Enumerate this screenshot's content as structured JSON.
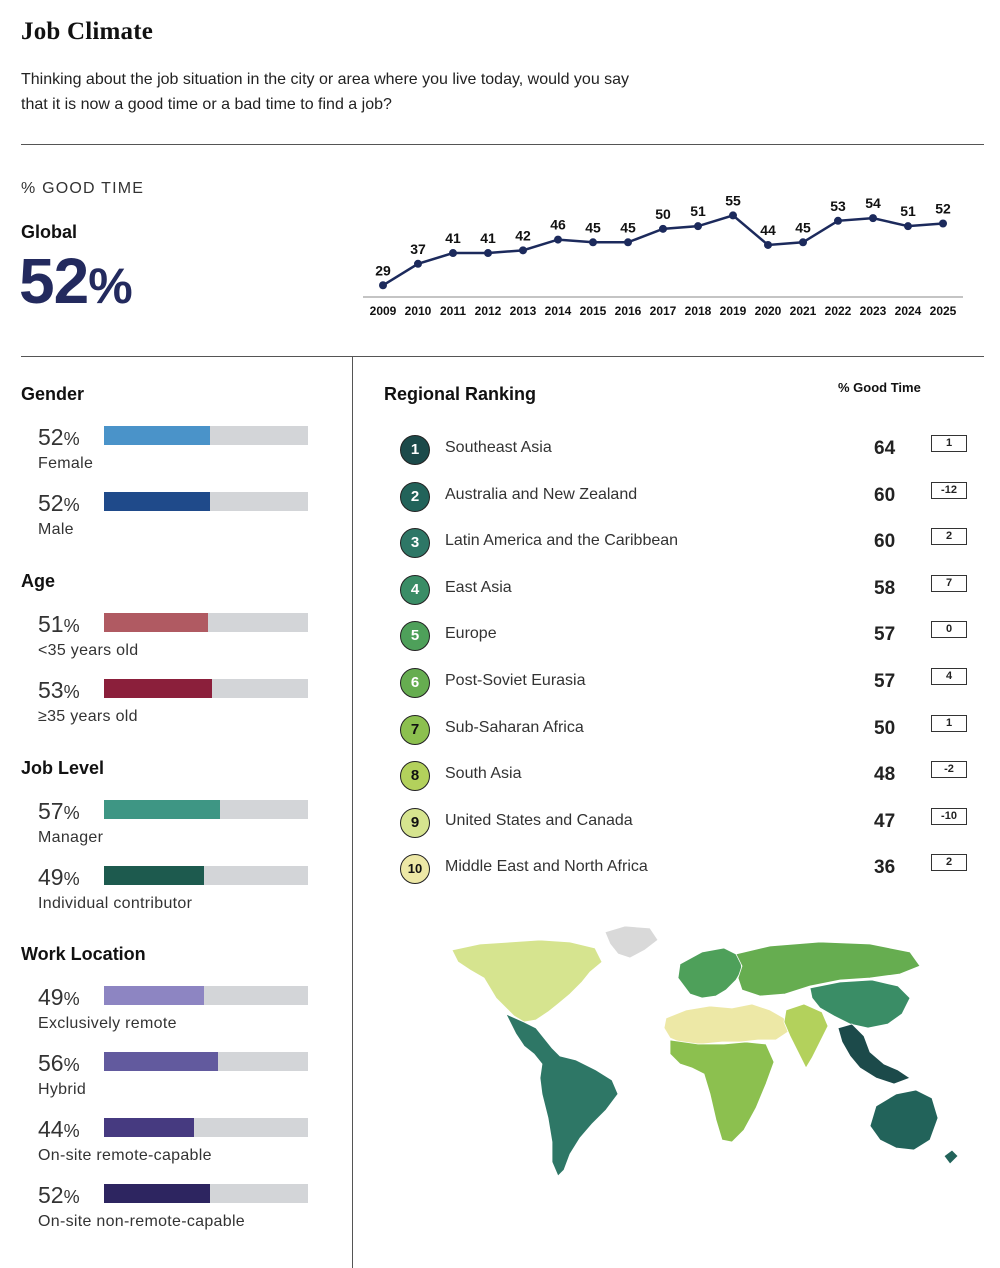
{
  "header": {
    "title": "Job Climate",
    "question": "Thinking about the job situation in the city or area where you live today, would you say that it is now a good time or a bad time to find a job?"
  },
  "global": {
    "metric_label": "% GOOD TIME",
    "label": "Global",
    "value": "52",
    "unit": "%"
  },
  "chart_data": {
    "type": "line",
    "title": "Global % Good Time",
    "x": [
      "2009",
      "2010",
      "2011",
      "2012",
      "2013",
      "2014",
      "2015",
      "2016",
      "2017",
      "2018",
      "2019",
      "2020",
      "2021",
      "2022",
      "2023",
      "2024",
      "2025"
    ],
    "values": [
      29,
      37,
      41,
      41,
      42,
      46,
      45,
      45,
      50,
      51,
      55,
      44,
      45,
      53,
      54,
      51,
      52
    ],
    "ylim": [
      25,
      60
    ],
    "color": "#1c2a5c"
  },
  "demographics": [
    {
      "section": "Gender",
      "items": [
        {
          "value": "52",
          "pct": 52,
          "label": "Female",
          "color": "#4a93c9"
        },
        {
          "value": "52",
          "pct": 52,
          "label": "Male",
          "color": "#1f4a8a"
        }
      ]
    },
    {
      "section": "Age",
      "items": [
        {
          "value": "51",
          "pct": 51,
          "label": "<35 years old",
          "color": "#b05a62"
        },
        {
          "value": "53",
          "pct": 53,
          "label": "≥35 years old",
          "color": "#8b1f3b"
        }
      ]
    },
    {
      "section": "Job Level",
      "items": [
        {
          "value": "57",
          "pct": 57,
          "label": "Manager",
          "color": "#3e9684"
        },
        {
          "value": "49",
          "pct": 49,
          "label": "Individual contributor",
          "color": "#1d5a4e"
        }
      ]
    },
    {
      "section": "Work Location",
      "items": [
        {
          "value": "49",
          "pct": 49,
          "label": "Exclusively remote",
          "color": "#8d85c2"
        },
        {
          "value": "56",
          "pct": 56,
          "label": "Hybrid",
          "color": "#625a9e"
        },
        {
          "value": "44",
          "pct": 44,
          "label": "On-site remote-capable",
          "color": "#463a80"
        },
        {
          "value": "52",
          "pct": 52,
          "label": "On-site non-remote-capable",
          "color": "#2d2560"
        }
      ]
    }
  ],
  "pct_sign": "%",
  "regional": {
    "title": "Regional Ranking",
    "column_header": "% Good Time",
    "rows": [
      {
        "rank": "1",
        "name": "Southeast Asia",
        "value": "64",
        "change": "1",
        "color": "#1c4a4a",
        "text_color": "#ffffff"
      },
      {
        "rank": "2",
        "name": "Australia and New Zealand",
        "value": "60",
        "change": "-12",
        "color": "#22635a",
        "text_color": "#ffffff"
      },
      {
        "rank": "3",
        "name": "Latin America and the Caribbean",
        "value": "60",
        "change": "2",
        "color": "#2e7766",
        "text_color": "#ffffff"
      },
      {
        "rank": "4",
        "name": "East Asia",
        "value": "58",
        "change": "7",
        "color": "#3a8d66",
        "text_color": "#ffffff"
      },
      {
        "rank": "5",
        "name": "Europe",
        "value": "57",
        "change": "0",
        "color": "#4ea05a",
        "text_color": "#ffffff"
      },
      {
        "rank": "6",
        "name": "Post-Soviet Eurasia",
        "value": "57",
        "change": "4",
        "color": "#66ad50",
        "text_color": "#ffffff"
      },
      {
        "rank": "7",
        "name": "Sub-Saharan Africa",
        "value": "50",
        "change": "1",
        "color": "#8cc04f",
        "text_color": "#111111"
      },
      {
        "rank": "8",
        "name": "South Asia",
        "value": "48",
        "change": "-2",
        "color": "#b3d15c",
        "text_color": "#111111"
      },
      {
        "rank": "9",
        "name": "United States and Canada",
        "value": "47",
        "change": "-10",
        "color": "#d6e48f",
        "text_color": "#111111"
      },
      {
        "rank": "10",
        "name": "Middle East and North Africa",
        "value": "36",
        "change": "2",
        "color": "#ede8a6",
        "text_color": "#111111"
      }
    ]
  },
  "map_colors": {
    "no_data": "#d9d9d9",
    "north_america": "#d6e48f",
    "latin_america": "#2e7766",
    "europe": "#4ea05a",
    "post_soviet": "#66ad50",
    "mena": "#ede8a6",
    "sub_saharan": "#8cc04f",
    "south_asia": "#b3d15c",
    "east_asia": "#3a8d66",
    "southeast_asia": "#1c4a4a",
    "oceania": "#22635a"
  }
}
